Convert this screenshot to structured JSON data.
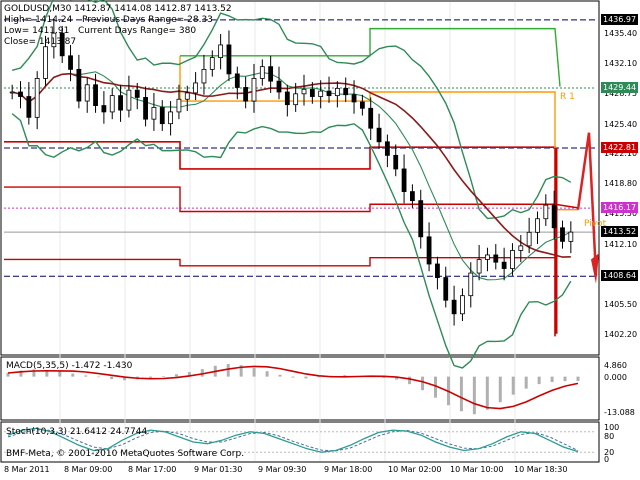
{
  "header": {
    "symbol_line": "GOLDUSD,M30  1412.87 1414.08 1412.87 1413.52",
    "high_line": "High= 1414.24",
    "low_line": "Low= 1411.91",
    "close_line": "Close= 1413.87",
    "prev_range": "Previous Days Range= 28.33",
    "cur_range": "Current Days Range= 380"
  },
  "level_labels": {
    "r1": "R 1",
    "pivot": "Pivot"
  },
  "price_axis": {
    "ticks": [
      "1435.40",
      "1432.10",
      "1428.75",
      "1425.40",
      "1422.10",
      "1418.80",
      "1415.50",
      "1412.10",
      "1408.85",
      "1405.50",
      "1402.20"
    ],
    "tags": [
      {
        "value": "1436.97",
        "bg": "#000000",
        "fg": "#ffffff"
      },
      {
        "value": "1429.44",
        "bg": "#2e8b57",
        "fg": "#ffffff"
      },
      {
        "value": "1422.81",
        "bg": "#cc0000",
        "fg": "#ffffff"
      },
      {
        "value": "1416.17",
        "bg": "#cc33cc",
        "fg": "#ffffff"
      },
      {
        "value": "1413.52",
        "bg": "#000000",
        "fg": "#ffffff"
      },
      {
        "value": "1408.64",
        "bg": "#000000",
        "fg": "#ffffff"
      }
    ]
  },
  "macd": {
    "label": "MACD(5,35,5) -1.472 -1.430",
    "ticks": [
      "4.860",
      "0.000",
      "-13.088"
    ]
  },
  "stoch": {
    "label": "Stoch(10,3,3) 21.6412 24.7744",
    "copyright": "BMF-Meta, © 2001-2010 MetaQuotes Software Corp.",
    "ticks": [
      "100",
      "80",
      "20",
      "0"
    ]
  },
  "time_axis": [
    "8 Mar 2011",
    "8 Mar 09:00",
    "8 Mar 17:00",
    "9 Mar 01:30",
    "9 Mar 09:30",
    "9 Mar 18:00",
    "10 Mar 02:00",
    "10 Mar 10:00",
    "10 Mar 18:30"
  ],
  "colors": {
    "background": "#ffffff",
    "candle": "#000000",
    "bollinger": "#2e8b57",
    "ma": "#8b1a1a",
    "resistance": "#cc0000",
    "orange_level": "#ff9900",
    "green_level": "#33aa33",
    "macd_line": "#cc0000",
    "macd_hist": "#b0b0b0",
    "stoch_main": "#2a9d8f",
    "stoch_signal": "#4a6fa5"
  },
  "chart_data": {
    "type": "candlestick",
    "symbol": "GOLDUSD",
    "timeframe": "M30",
    "ylim": [
      1402.2,
      1436.97
    ],
    "current_price": 1413.52,
    "levels": [
      {
        "name": "R1",
        "value": 1429.44
      },
      {
        "name": "Pivot",
        "value": 1416.17
      },
      {
        "value": 1436.97
      },
      {
        "value": 1422.81
      },
      {
        "value": 1408.64
      }
    ],
    "close_series": [
      1429.0,
      1428.5,
      1426.2,
      1430.5,
      1434.0,
      1435.5,
      1433.0,
      1431.5,
      1428.0,
      1429.8,
      1427.5,
      1426.8,
      1428.6,
      1427.0,
      1429.2,
      1428.4,
      1426.0,
      1427.3,
      1425.5,
      1426.8,
      1428.2,
      1428.9,
      1430.0,
      1431.5,
      1432.8,
      1434.2,
      1431.0,
      1429.5,
      1428.0,
      1430.5,
      1431.8,
      1430.2,
      1429.0,
      1427.6,
      1428.8,
      1429.3,
      1428.5,
      1429.1,
      1428.6,
      1429.4,
      1428.7,
      1427.9,
      1427.2,
      1425.0,
      1423.5,
      1422.0,
      1420.5,
      1418.0,
      1417.0,
      1413.0,
      1410.0,
      1408.5,
      1406.0,
      1404.5,
      1406.5,
      1409.0,
      1410.5,
      1411.0,
      1410.2,
      1409.5,
      1411.5,
      1412.0,
      1413.5,
      1415.0,
      1416.5,
      1414.0,
      1412.5,
      1413.52
    ],
    "macd_values": [
      1.2,
      2.0,
      2.4,
      2.1,
      1.8,
      1.0,
      0.4,
      -0.2,
      -0.8,
      -1.2,
      -0.9,
      -0.4,
      0.2,
      0.8,
      1.5,
      2.5,
      3.6,
      4.2,
      3.8,
      2.9,
      1.8,
      0.6,
      -0.3,
      -0.6,
      -0.2,
      0.3,
      0.5,
      0.2,
      -0.1,
      -0.4,
      -1.0,
      -2.5,
      -4.5,
      -7.0,
      -9.5,
      -11.5,
      -12.5,
      -11.0,
      -8.5,
      -6.0,
      -4.0,
      -2.5,
      -1.8,
      -1.5,
      -1.47
    ],
    "stoch_main": [
      70,
      85,
      90,
      80,
      60,
      40,
      25,
      30,
      55,
      75,
      85,
      80,
      65,
      50,
      45,
      55,
      70,
      80,
      75,
      60,
      45,
      30,
      20,
      25,
      40,
      60,
      78,
      85,
      82,
      70,
      50,
      35,
      25,
      30,
      45,
      65,
      80,
      75,
      55,
      35,
      21.64
    ],
    "stoch_signal": [
      65,
      78,
      86,
      84,
      70,
      52,
      35,
      30,
      42,
      62,
      78,
      82,
      75,
      60,
      50,
      50,
      62,
      75,
      78,
      68,
      52,
      38,
      26,
      24,
      32,
      50,
      68,
      80,
      84,
      76,
      60,
      44,
      32,
      30,
      38,
      55,
      72,
      78,
      65,
      45,
      24.77
    ]
  }
}
